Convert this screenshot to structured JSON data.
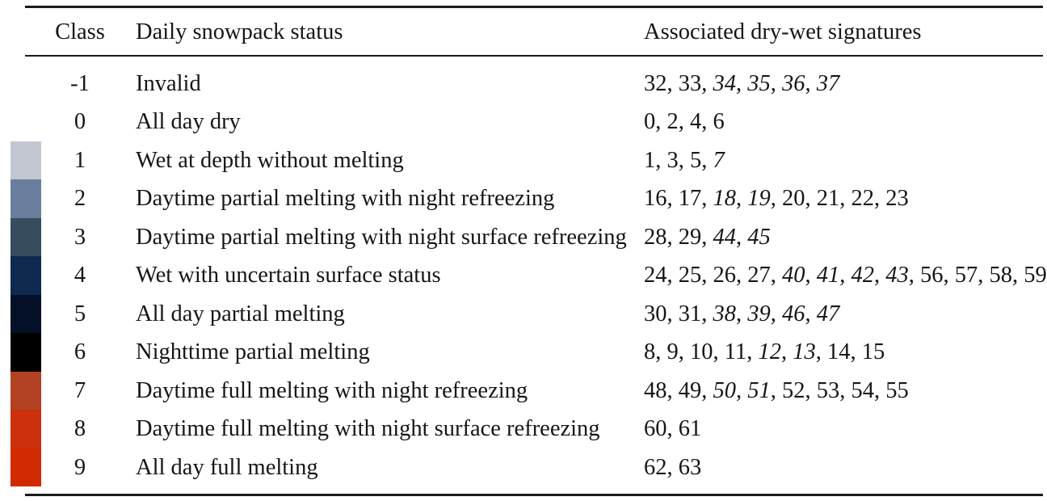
{
  "table": {
    "headers": [
      {
        "label": "Class"
      },
      {
        "label": "Daily snowpack status"
      },
      {
        "label": "Associated dry-wet signatures"
      }
    ],
    "rows": [
      {
        "class": "-1",
        "status": "Invalid",
        "color": null,
        "signatures": [
          {
            "value": "32",
            "italic": false
          },
          {
            "value": "33",
            "italic": false
          },
          {
            "value": "34",
            "italic": true
          },
          {
            "value": "35",
            "italic": true
          },
          {
            "value": "36",
            "italic": true
          },
          {
            "value": "37",
            "italic": true
          }
        ]
      },
      {
        "class": "0",
        "status": "All day dry",
        "color": null,
        "signatures": [
          {
            "value": "0",
            "italic": false
          },
          {
            "value": "2",
            "italic": false
          },
          {
            "value": "4",
            "italic": false
          },
          {
            "value": "6",
            "italic": false
          }
        ]
      },
      {
        "class": "1",
        "status": "Wet at depth without melting",
        "color": "#c2c7d1",
        "signatures": [
          {
            "value": "1",
            "italic": false
          },
          {
            "value": "3",
            "italic": false
          },
          {
            "value": "5",
            "italic": false
          },
          {
            "value": "7",
            "italic": true
          }
        ]
      },
      {
        "class": "2",
        "status": "Daytime partial melting with night refreezing",
        "color": "#6a7e9d",
        "signatures": [
          {
            "value": "16",
            "italic": false
          },
          {
            "value": "17",
            "italic": false
          },
          {
            "value": "18",
            "italic": true
          },
          {
            "value": "19",
            "italic": true
          },
          {
            "value": "20",
            "italic": false
          },
          {
            "value": "21",
            "italic": false
          },
          {
            "value": "22",
            "italic": false
          },
          {
            "value": "23",
            "italic": false
          }
        ]
      },
      {
        "class": "3",
        "status": "Daytime partial melting with night surface refreezing",
        "color": "#384c5f",
        "signatures": [
          {
            "value": "28",
            "italic": false
          },
          {
            "value": "29",
            "italic": false
          },
          {
            "value": "44",
            "italic": true
          },
          {
            "value": "45",
            "italic": true
          }
        ]
      },
      {
        "class": "4",
        "status": "Wet with uncertain surface status",
        "color": "#0f2950",
        "signatures": [
          {
            "value": "24",
            "italic": false
          },
          {
            "value": "25",
            "italic": false
          },
          {
            "value": "26",
            "italic": false
          },
          {
            "value": "27",
            "italic": false
          },
          {
            "value": "40",
            "italic": true
          },
          {
            "value": "41",
            "italic": true
          },
          {
            "value": "42",
            "italic": true
          },
          {
            "value": "43",
            "italic": true
          },
          {
            "value": "56",
            "italic": false
          },
          {
            "value": "57",
            "italic": false
          },
          {
            "value": "58",
            "italic": false
          },
          {
            "value": "59",
            "italic": false
          }
        ]
      },
      {
        "class": "5",
        "status": "All day partial melting",
        "color": "#041128",
        "signatures": [
          {
            "value": "30",
            "italic": false
          },
          {
            "value": "31",
            "italic": false
          },
          {
            "value": "38",
            "italic": true
          },
          {
            "value": "39",
            "italic": true
          },
          {
            "value": "46",
            "italic": true
          },
          {
            "value": "47",
            "italic": true
          }
        ]
      },
      {
        "class": "6",
        "status": "Nighttime partial melting",
        "color": "#000000",
        "signatures": [
          {
            "value": "8",
            "italic": false
          },
          {
            "value": "9",
            "italic": false
          },
          {
            "value": "10",
            "italic": false
          },
          {
            "value": "11",
            "italic": false
          },
          {
            "value": "12",
            "italic": true
          },
          {
            "value": "13",
            "italic": true
          },
          {
            "value": "14",
            "italic": false
          },
          {
            "value": "15",
            "italic": false
          }
        ]
      },
      {
        "class": "7",
        "status": "Daytime full melting with night refreezing",
        "color": "#b34123",
        "signatures": [
          {
            "value": "48",
            "italic": false
          },
          {
            "value": "49",
            "italic": false
          },
          {
            "value": "50",
            "italic": true
          },
          {
            "value": "51",
            "italic": true
          },
          {
            "value": "52",
            "italic": false
          },
          {
            "value": "53",
            "italic": false
          },
          {
            "value": "54",
            "italic": false
          },
          {
            "value": "55",
            "italic": false
          }
        ]
      },
      {
        "class": "8",
        "status": "Daytime full melting with night surface refreezing",
        "color": "#cc300d",
        "signatures": [
          {
            "value": "60",
            "italic": false
          },
          {
            "value": "61",
            "italic": false
          }
        ]
      },
      {
        "class": "9",
        "status": "All day full melting",
        "color": "#d22b03",
        "signatures": [
          {
            "value": "62",
            "italic": false
          },
          {
            "value": "63",
            "italic": false
          }
        ]
      }
    ]
  }
}
